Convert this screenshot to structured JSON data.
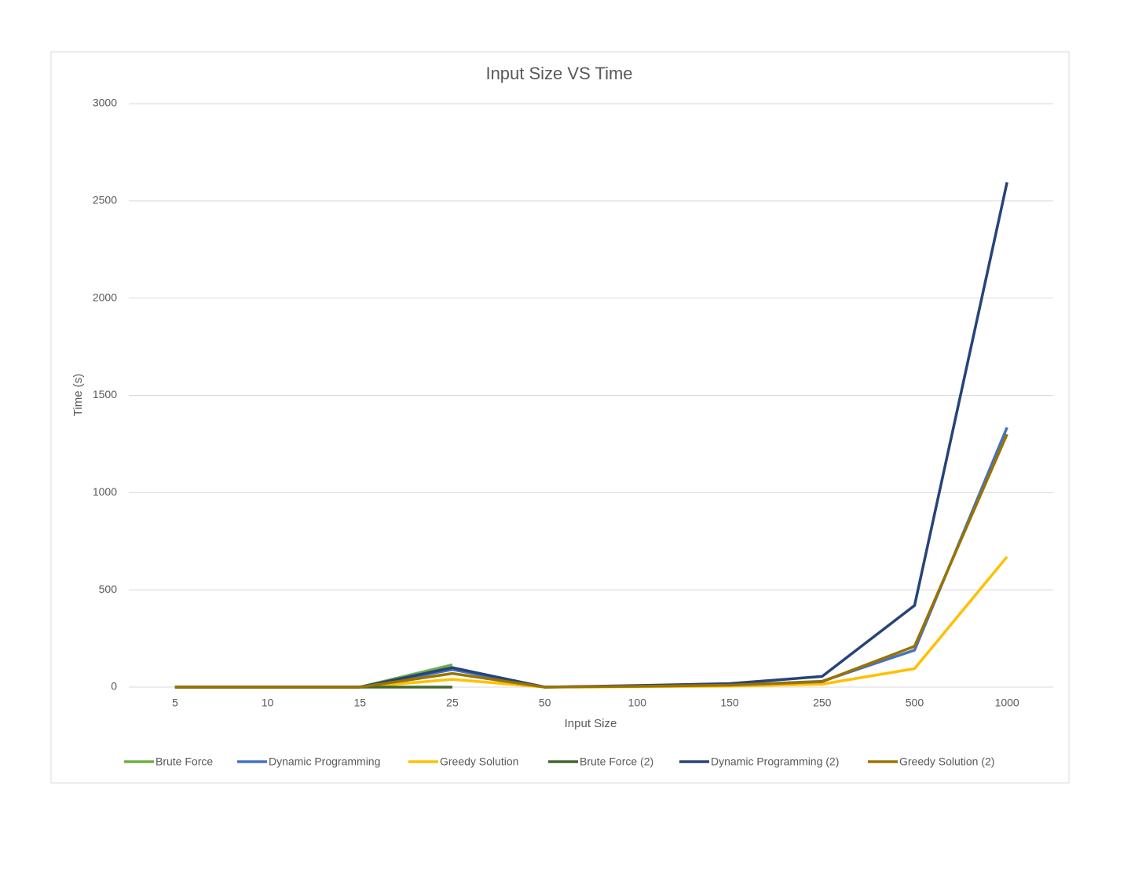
{
  "chart_data": {
    "type": "line",
    "title": "Input Size VS Time",
    "x_label": "Input Size",
    "y_label": "Time (s)",
    "categories": [
      "5",
      "10",
      "15",
      "25",
      "50",
      "100",
      "150",
      "250",
      "500",
      "1000"
    ],
    "series": [
      {
        "name": "Brute Force",
        "color": "#70ad47",
        "values": [
          0,
          0,
          0,
          115,
          null,
          null,
          null,
          null,
          null,
          null
        ]
      },
      {
        "name": "Dynamic Programming",
        "color": "#4472c4",
        "values": [
          0,
          0,
          0,
          90,
          0,
          5,
          10,
          30,
          190,
          1335
        ]
      },
      {
        "name": "Greedy Solution",
        "color": "#ffc000",
        "values": [
          0,
          0,
          0,
          40,
          0,
          2,
          5,
          15,
          95,
          670
        ]
      },
      {
        "name": "Brute Force (2)",
        "color": "#43682b",
        "values": [
          0,
          0,
          0,
          0,
          null,
          null,
          null,
          null,
          null,
          null
        ]
      },
      {
        "name": "Dynamic Programming (2)",
        "color": "#264478",
        "values": [
          0,
          0,
          0,
          100,
          0,
          8,
          18,
          55,
          420,
          2595
        ]
      },
      {
        "name": "Greedy Solution (2)",
        "color": "#997300",
        "values": [
          0,
          0,
          0,
          70,
          0,
          4,
          10,
          28,
          210,
          1300
        ]
      }
    ],
    "ylim": [
      0,
      3000
    ],
    "yticks": [
      0,
      500,
      1000,
      1500,
      2000,
      2500,
      3000
    ],
    "grid": true,
    "legend": "bottom"
  }
}
